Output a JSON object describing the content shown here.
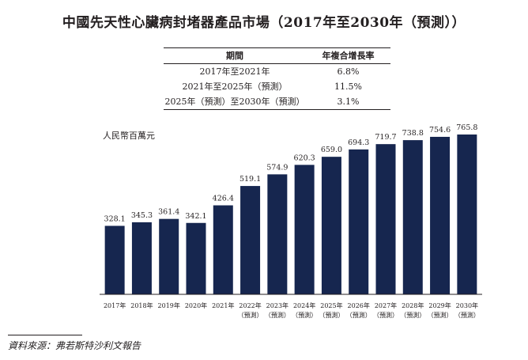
{
  "title": "中國先天性心臟病封堵器產品市場（2017年至2030年（預測））",
  "cagr_table": {
    "headers": [
      "期間",
      "年複合增長率"
    ],
    "rows": [
      {
        "period": "2017年至2021年",
        "rate": "6.8%"
      },
      {
        "period": "2021年至2025年（預測）",
        "rate": "11.5%"
      },
      {
        "period": "2025年（預測）至2030年（預測）",
        "rate": "3.1%"
      }
    ]
  },
  "unit_label": "人民幣百萬元",
  "source": "資料來源：弗若斯特沙利文報告",
  "chart_data": {
    "type": "bar",
    "title": "中國先天性心臟病封堵器產品市場（2017年至2030年（預測））",
    "ylabel": "人民幣百萬元",
    "xlabel": "",
    "ylim": [
      0,
      800
    ],
    "categories": [
      "2017年",
      "2018年",
      "2019年",
      "2020年",
      "2021年",
      "2022年",
      "2023年",
      "2024年",
      "2025年",
      "2026年",
      "2027年",
      "2028年",
      "2029年",
      "2030年"
    ],
    "forecast_label": "（預測）",
    "forecast": [
      false,
      false,
      false,
      false,
      false,
      true,
      true,
      true,
      true,
      true,
      true,
      true,
      true,
      true
    ],
    "values": [
      328.1,
      345.3,
      361.4,
      342.1,
      426.4,
      519.1,
      574.9,
      620.3,
      659.0,
      694.3,
      719.7,
      738.8,
      754.6,
      765.8
    ],
    "value_labels": [
      "328.1",
      "345.3",
      "361.4",
      "342.1",
      "426.4",
      "519.1",
      "574.9",
      "620.3",
      "659.0",
      "694.3",
      "719.7",
      "738.8",
      "754.6",
      "765.8"
    ],
    "bar_color": "#16264f",
    "axis_color": "#231f20"
  }
}
